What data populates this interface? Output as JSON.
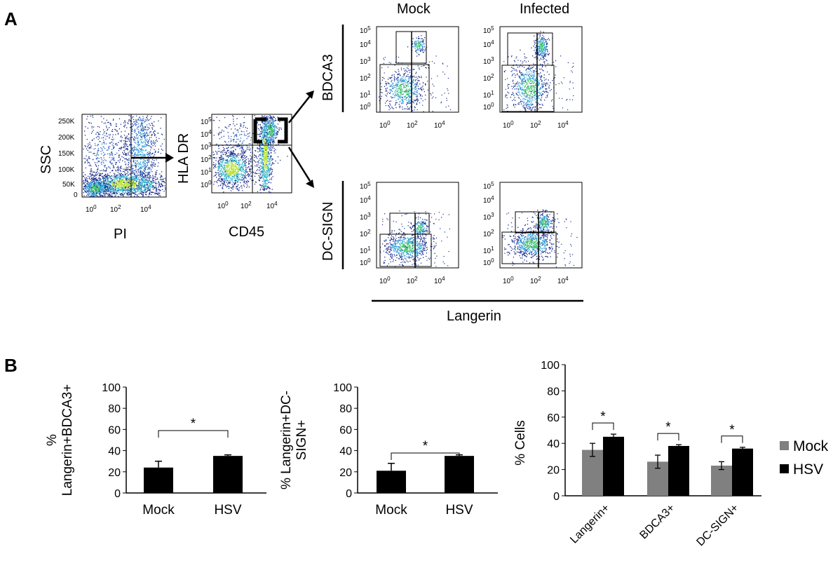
{
  "panels": {
    "a": "A",
    "b": "B"
  },
  "flow": {
    "plot1": {
      "ylabel": "SSC",
      "xlabel": "PI",
      "yticks": [
        "250K",
        "200K",
        "150K",
        "100K",
        "50K",
        "0"
      ],
      "xticks": [
        "10",
        "0",
        "10",
        "2",
        "10",
        "4"
      ]
    },
    "plot2": {
      "ylabel": "HLA DR",
      "xlabel": "CD45"
    },
    "column_headers": [
      "Mock",
      "Infected"
    ],
    "row_labels": [
      "BDCA3",
      "DC-SIGN"
    ],
    "shared_xlabel": "Langerin",
    "log_ticks": {
      "base": "10",
      "exps": [
        "0",
        "1",
        "2",
        "3",
        "4",
        "5"
      ]
    }
  },
  "chart_data": [
    {
      "type": "bar",
      "categories": [
        "Mock",
        "HSV"
      ],
      "values": [
        24,
        35
      ],
      "errors": [
        6,
        1
      ],
      "ylabel": "% Langerin+BDCA3+",
      "ylabel_lines": [
        "%",
        "Langerin+BDCA3+"
      ],
      "ylim": [
        0,
        100
      ],
      "yticks": [
        "0",
        "20",
        "40",
        "60",
        "80",
        "100"
      ],
      "significance": "*",
      "color": "#000000"
    },
    {
      "type": "bar",
      "categories": [
        "Mock",
        "HSV"
      ],
      "values": [
        21,
        35
      ],
      "errors": [
        7,
        1
      ],
      "ylabel": "% Langerin+DC-SIGN+",
      "ylabel_lines": [
        "% Langerin+DC-",
        "SIGN+"
      ],
      "ylim": [
        0,
        100
      ],
      "yticks": [
        "0",
        "20",
        "40",
        "60",
        "80",
        "100"
      ],
      "significance": "*",
      "color": "#000000"
    },
    {
      "type": "bar",
      "categories": [
        "Langerin+",
        "BDCA3+",
        "DC-SIGN+"
      ],
      "series": [
        {
          "name": "Mock",
          "values": [
            35,
            26,
            23
          ],
          "errors": [
            5,
            5,
            3
          ],
          "color": "#808080"
        },
        {
          "name": "HSV",
          "values": [
            45,
            38,
            36
          ],
          "errors": [
            2,
            1,
            1
          ],
          "color": "#000000"
        }
      ],
      "ylabel": "% Cells",
      "ylim": [
        0,
        100
      ],
      "yticks": [
        "0",
        "20",
        "40",
        "60",
        "80",
        "100"
      ],
      "significance": [
        "*",
        "*",
        "*"
      ],
      "legend": "right"
    }
  ]
}
